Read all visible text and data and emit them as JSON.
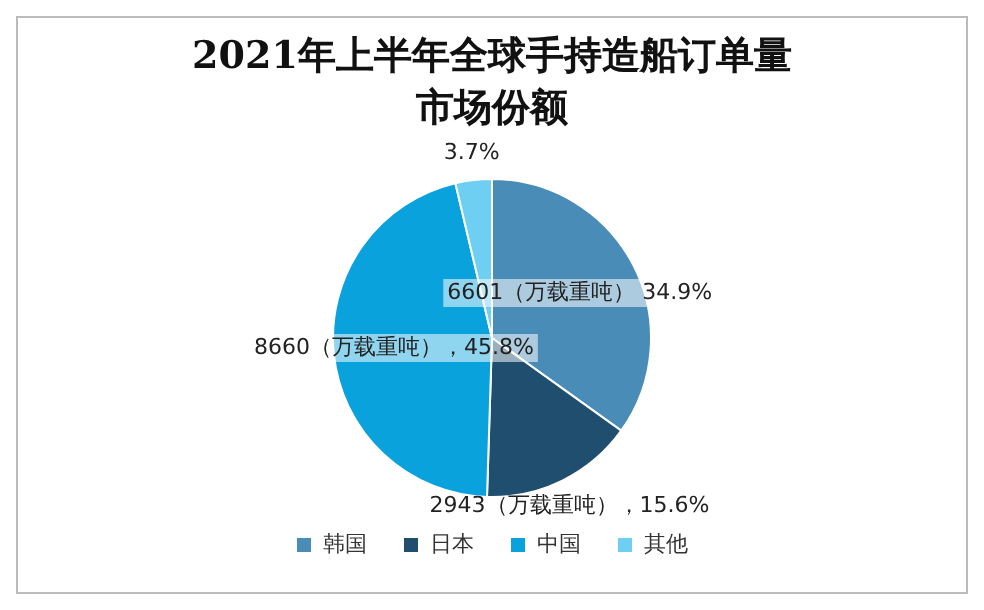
{
  "chart_data": {
    "type": "pie",
    "title": "2021年上半年全球手持造船订单量市场份额",
    "categories": [
      "韩国",
      "日本",
      "中国",
      "其他"
    ],
    "values": [
      34.9,
      15.6,
      45.8,
      3.7
    ],
    "colors": [
      "#4a8cb8",
      "#1f4e6e",
      "#0aa2dc",
      "#6fcff2"
    ],
    "value_labels": [
      "6601（万载重吨） 34.9%",
      "2943（万载重吨），15.6%",
      "8660（万载重吨），45.8%",
      "3.7%"
    ],
    "legend": "bottom"
  }
}
